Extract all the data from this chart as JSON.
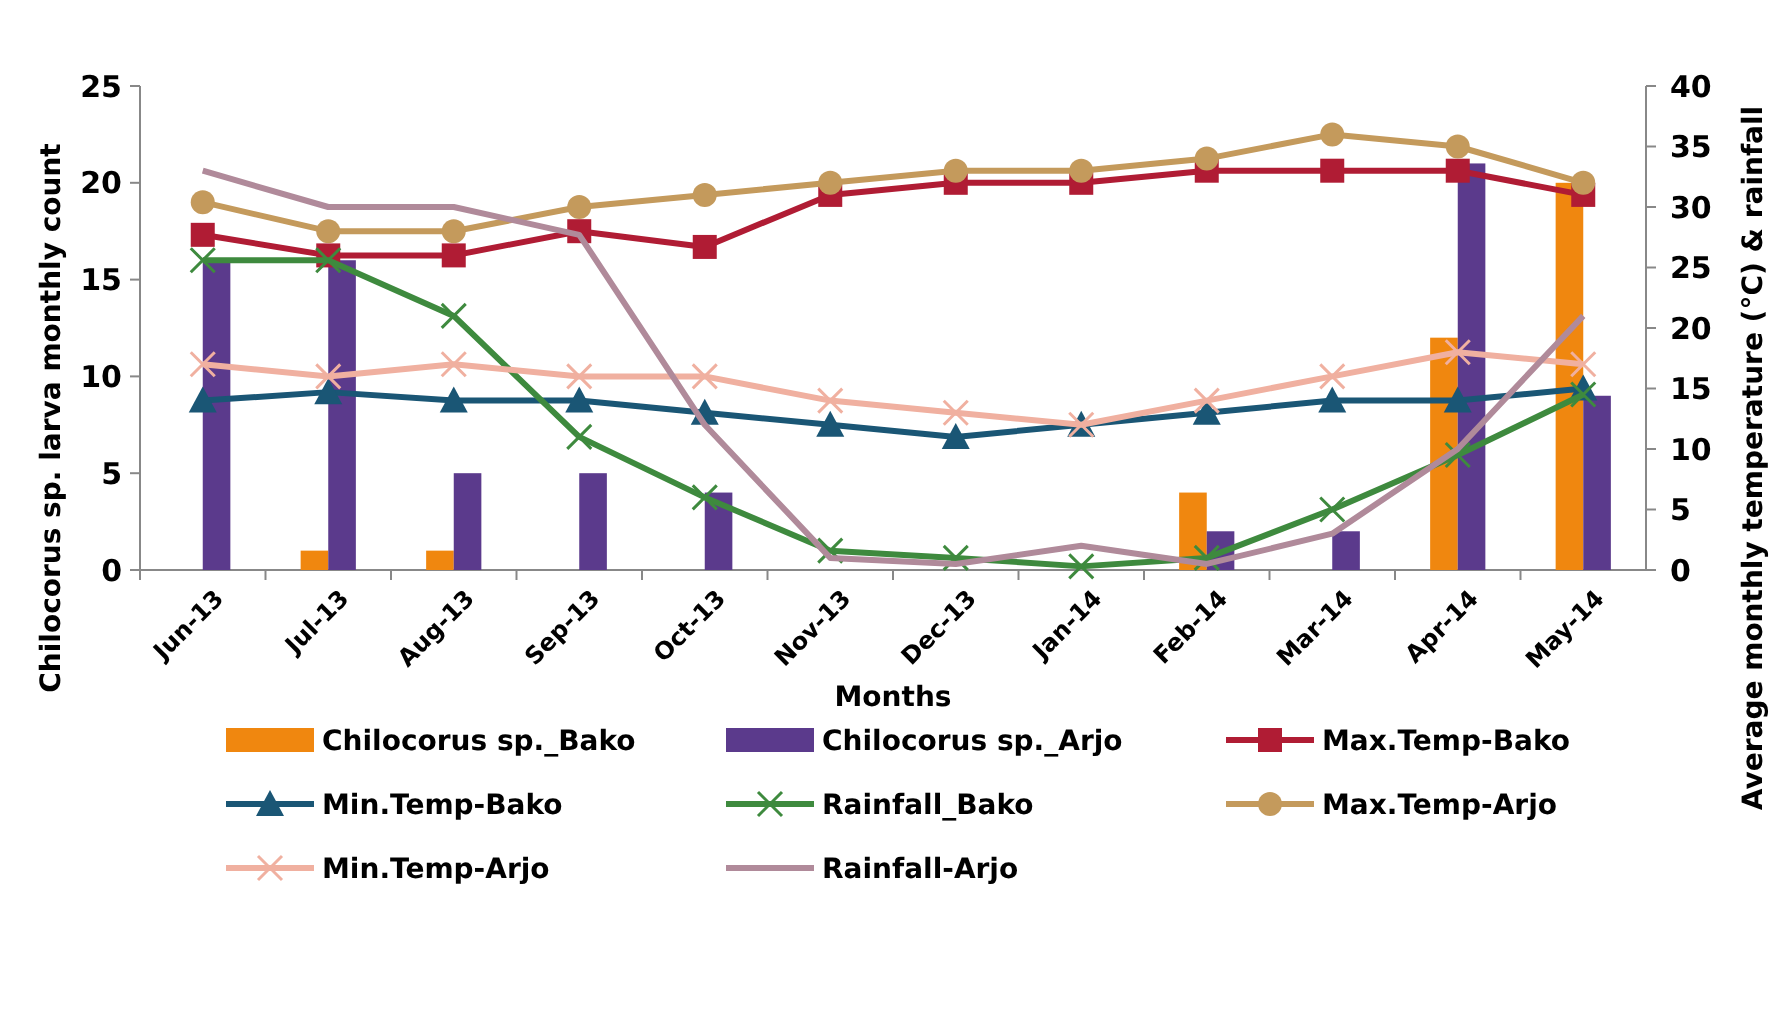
{
  "chart_data": {
    "type": "bar",
    "xlabel": "Months",
    "ylabel": "Chilocorus sp. larva monthly count",
    "y2label": "Average monthly temperature (°C) & rainfall",
    "categories": [
      "Jun-13",
      "Jul-13",
      "Aug-13",
      "Sep-13",
      "Oct-13",
      "Nov-13",
      "Dec-13",
      "Jan-14",
      "Feb-14",
      "Mar-14",
      "Apr-14",
      "May-14"
    ],
    "ylim": [
      0,
      25
    ],
    "yticks": [
      0,
      5,
      10,
      15,
      20,
      25
    ],
    "y2lim": [
      0,
      40
    ],
    "y2ticks": [
      0,
      5,
      10,
      15,
      20,
      25,
      30,
      35,
      40
    ],
    "legend": "bottom",
    "series": [
      {
        "name": "Chilocorus sp._Bako",
        "color": "#f0870f",
        "values": [
          0,
          1,
          1,
          0,
          0,
          0,
          0,
          0,
          4,
          0,
          12,
          20
        ]
      },
      {
        "name": "Chilocorus sp._Arjo",
        "color": "#5b3a8c",
        "values": [
          16,
          16,
          5,
          5,
          4,
          0,
          0,
          0,
          2,
          2,
          21,
          9
        ]
      },
      {
        "name": "Max.Temp-Bako",
        "type": "line",
        "axis": "y2",
        "marker": "square",
        "color": "#b01c34",
        "values": [
          27.7,
          26,
          26,
          28,
          26.7,
          31,
          32,
          32,
          33,
          33,
          33,
          31
        ]
      },
      {
        "name": "Min.Temp-Bako",
        "type": "line",
        "axis": "y2",
        "marker": "triangle",
        "color": "#1a5675",
        "values": [
          14,
          14.7,
          14,
          14,
          13,
          12,
          11,
          12,
          13,
          14,
          14,
          15
        ]
      },
      {
        "name": "Rainfall_Bako",
        "type": "line",
        "axis": "y2",
        "marker": "cross",
        "color": "#3e8a3e",
        "values": [
          25.6,
          25.6,
          21,
          11,
          6,
          1.6,
          1,
          0.3,
          1,
          5,
          9.5,
          14.5
        ]
      },
      {
        "name": "Max.Temp-Arjo",
        "type": "line",
        "axis": "y2",
        "marker": "circle",
        "color": "#c49a5c",
        "values": [
          30.4,
          28,
          28,
          30,
          31,
          32,
          33,
          33,
          34,
          36,
          35,
          32
        ]
      },
      {
        "name": "Min.Temp-Arjo",
        "type": "line",
        "axis": "y2",
        "marker": "cross",
        "color": "#f0b0a0",
        "values": [
          17,
          16,
          17,
          16,
          16,
          14,
          13,
          12,
          14,
          16,
          18,
          17
        ]
      },
      {
        "name": "Rainfall-Arjo",
        "type": "line",
        "axis": "y2",
        "marker": "none",
        "color": "#b08a9a",
        "values": [
          33,
          30,
          30,
          27.7,
          12,
          1,
          0.5,
          2,
          0.5,
          3,
          10,
          21
        ]
      }
    ]
  }
}
